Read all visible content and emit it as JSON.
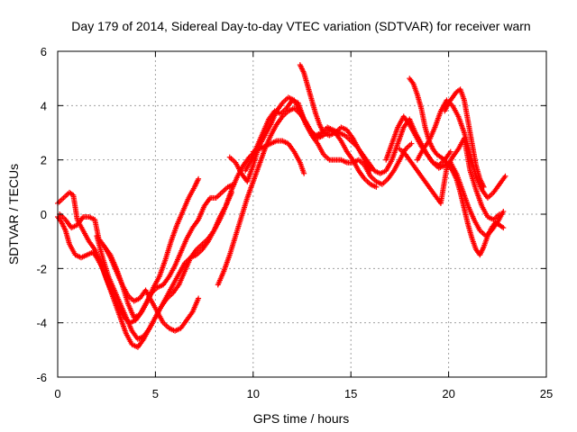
{
  "chart_data": {
    "type": "scatter",
    "title": "Day 179 of 2014, Sidereal Day-to-day VTEC variation (SDTVAR) for receiver warn",
    "xlabel": "GPS time / hours",
    "ylabel": "SDTVAR / TECUs",
    "xlim": [
      0,
      25
    ],
    "ylim": [
      -6,
      6
    ],
    "xticks": [
      0,
      5,
      10,
      15,
      20,
      25
    ],
    "yticks": [
      -6,
      -4,
      -2,
      0,
      2,
      4,
      6
    ],
    "grid": true,
    "marker": "+",
    "color": "#ff0000",
    "series": [
      {
        "x": [
          0.0,
          0.3,
          0.6,
          0.8,
          1.0,
          1.3,
          1.6,
          1.9,
          2.2,
          2.5,
          2.8,
          3.1,
          3.4,
          3.7,
          4.0,
          4.3,
          4.6,
          4.9,
          5.2,
          5.5,
          5.8,
          6.1,
          6.4,
          6.7,
          7.0,
          7.2
        ],
        "y": [
          0.4,
          0.6,
          0.8,
          0.7,
          -0.2,
          -0.6,
          -1.0,
          -1.3,
          -1.8,
          -2.4,
          -2.9,
          -3.4,
          -3.8,
          -4.0,
          -3.9,
          -3.6,
          -3.2,
          -2.7,
          -2.3,
          -1.7,
          -1.0,
          -0.4,
          0.1,
          0.6,
          1.0,
          1.3
        ]
      },
      {
        "x": [
          0.0,
          0.2,
          0.4,
          0.6,
          0.9,
          1.2,
          1.5,
          1.8,
          2.0,
          2.3,
          2.6,
          2.9,
          3.2,
          3.5,
          3.8,
          4.1,
          4.4,
          4.7,
          5.0,
          5.3,
          5.6,
          5.9,
          6.2,
          6.5,
          6.8,
          7.1,
          7.4,
          7.7,
          8.0,
          8.3,
          8.6,
          8.9
        ],
        "y": [
          -0.1,
          -0.3,
          -0.6,
          -1.1,
          -1.5,
          -1.6,
          -1.5,
          -1.4,
          -1.6,
          -2.0,
          -2.6,
          -3.2,
          -3.8,
          -4.4,
          -4.8,
          -4.9,
          -4.6,
          -4.2,
          -3.8,
          -3.4,
          -3.0,
          -2.6,
          -2.2,
          -1.8,
          -1.6,
          -1.5,
          -1.3,
          -1.0,
          -0.6,
          -0.1,
          0.3,
          0.8
        ]
      },
      {
        "x": [
          0.1,
          0.4,
          0.7,
          1.0,
          1.3,
          1.6,
          1.9,
          2.1,
          2.4,
          2.7,
          3.0,
          3.3,
          3.6,
          3.9,
          4.2,
          4.5,
          4.8,
          5.1,
          5.4,
          5.7,
          6.0,
          6.3,
          6.6,
          6.9,
          7.2,
          7.5,
          7.8,
          8.1,
          8.4,
          8.7,
          9.0
        ],
        "y": [
          0.0,
          -0.2,
          -0.5,
          -0.4,
          -0.1,
          -0.1,
          -0.2,
          -0.9,
          -1.2,
          -1.5,
          -2.0,
          -2.6,
          -3.3,
          -3.8,
          -3.7,
          -3.3,
          -2.9,
          -2.7,
          -2.6,
          -2.3,
          -1.9,
          -1.4,
          -0.9,
          -0.5,
          -0.2,
          0.3,
          0.6,
          0.6,
          0.8,
          1.0,
          1.1
        ]
      },
      {
        "x": [
          2.0,
          2.3,
          2.6,
          2.9,
          3.2,
          3.5,
          3.8,
          4.1,
          4.4,
          4.7,
          5.0,
          5.3,
          5.6,
          5.9,
          6.2,
          6.5,
          6.8,
          7.1,
          7.4,
          7.7,
          8.0,
          8.3,
          8.6,
          8.9,
          9.2,
          9.5,
          9.8,
          10.1
        ],
        "y": [
          -0.8,
          -1.6,
          -2.3,
          -2.8,
          -3.3,
          -3.8,
          -4.3,
          -4.6,
          -4.5,
          -4.2,
          -3.8,
          -3.4,
          -3.1,
          -2.9,
          -2.6,
          -2.1,
          -1.6,
          -1.3,
          -1.1,
          -0.9,
          -0.6,
          -0.2,
          0.3,
          0.9,
          1.4,
          1.8,
          2.1,
          2.3
        ]
      },
      {
        "x": [
          2.4,
          2.7,
          3.0,
          3.3,
          3.6,
          3.9,
          4.2,
          4.5,
          4.8,
          5.1,
          5.4,
          5.7,
          6.0,
          6.3,
          6.6,
          6.9,
          7.2
        ],
        "y": [
          -1.2,
          -1.6,
          -2.1,
          -2.6,
          -3.0,
          -3.2,
          -3.1,
          -2.8,
          -3.2,
          -3.6,
          -4.0,
          -4.2,
          -4.3,
          -4.2,
          -3.9,
          -3.6,
          -3.1
        ]
      },
      {
        "x": [
          8.2,
          8.5,
          8.8,
          9.1,
          9.4,
          9.7,
          10.0,
          10.3,
          10.6,
          10.9,
          11.2,
          11.5,
          11.8,
          12.1,
          12.4,
          12.7,
          13.0,
          13.3,
          13.6,
          13.9,
          14.2,
          14.5,
          14.8,
          15.1,
          15.4,
          15.7,
          16.0,
          16.3
        ],
        "y": [
          -2.6,
          -2.1,
          -1.5,
          -0.8,
          -0.1,
          0.6,
          1.2,
          1.8,
          2.4,
          2.9,
          3.3,
          3.6,
          3.8,
          3.9,
          3.7,
          3.4,
          3.0,
          2.8,
          2.9,
          3.1,
          3.0,
          2.7,
          2.3,
          2.0,
          1.6,
          1.3,
          1.1,
          1.0
        ]
      },
      {
        "x": [
          8.8,
          9.1,
          9.4,
          9.7,
          10.0,
          10.3,
          10.6,
          10.9,
          11.2,
          11.5,
          11.8,
          12.1,
          12.4,
          12.7,
          13.0,
          13.3,
          13.6,
          13.9,
          14.2,
          14.5,
          14.8,
          15.1,
          15.4,
          15.7,
          16.0,
          16.3,
          16.6,
          16.9,
          17.2,
          17.5,
          17.8,
          18.1
        ],
        "y": [
          2.1,
          1.9,
          1.5,
          1.2,
          1.8,
          2.5,
          2.9,
          3.3,
          3.8,
          4.1,
          4.3,
          4.2,
          3.8,
          3.3,
          2.9,
          2.6,
          2.2,
          2.0,
          2.0,
          2.0,
          1.9,
          1.9,
          2.0,
          1.8,
          1.4,
          1.2,
          1.1,
          1.3,
          1.6,
          2.0,
          2.4,
          2.6
        ]
      },
      {
        "x": [
          9.6,
          9.9,
          10.2,
          10.5,
          10.8,
          11.1,
          11.4,
          11.7,
          12.0,
          12.3,
          12.6,
          12.9,
          13.2,
          13.5,
          13.8,
          14.1,
          14.4,
          14.7,
          15.0,
          15.3,
          15.6,
          15.9,
          16.2,
          16.5,
          16.8,
          17.1,
          17.4,
          17.7,
          18.0,
          18.3,
          18.6,
          18.9,
          19.2,
          19.5,
          19.8,
          20.1
        ],
        "y": [
          1.6,
          2.0,
          2.5,
          3.0,
          3.5,
          3.8,
          3.7,
          3.9,
          4.2,
          4.1,
          3.5,
          3.1,
          2.9,
          3.0,
          3.2,
          3.1,
          3.0,
          2.9,
          2.7,
          2.5,
          2.2,
          1.9,
          1.6,
          1.5,
          1.6,
          2.0,
          2.6,
          3.2,
          3.5,
          3.0,
          2.6,
          2.2,
          1.9,
          1.8,
          2.0,
          2.3
        ]
      },
      {
        "x": [
          10.0,
          10.3,
          10.6,
          10.9,
          11.2,
          11.5,
          11.8,
          12.1,
          12.4,
          12.6
        ],
        "y": [
          2.3,
          2.4,
          2.5,
          2.6,
          2.7,
          2.7,
          2.6,
          2.3,
          1.9,
          1.5
        ]
      },
      {
        "x": [
          12.4,
          12.6,
          12.8,
          13.0,
          13.2,
          13.4,
          13.6,
          13.9,
          14.2,
          14.5,
          14.8,
          15.1,
          15.4,
          15.7,
          16.0
        ],
        "y": [
          5.5,
          5.2,
          4.7,
          4.2,
          3.7,
          3.3,
          3.0,
          2.9,
          3.0,
          3.2,
          3.1,
          2.8,
          2.4,
          2.0,
          1.6
        ]
      },
      {
        "x": [
          16.8,
          17.1,
          17.4,
          17.7,
          18.0,
          18.3,
          18.6,
          18.9,
          19.2,
          19.5,
          19.8,
          20.1,
          20.4,
          20.7,
          21.0,
          21.3,
          21.6,
          21.9,
          22.2,
          22.5,
          22.8
        ],
        "y": [
          2.0,
          2.6,
          3.2,
          3.6,
          3.3,
          2.9,
          2.5,
          2.2,
          1.9,
          1.7,
          1.8,
          1.9,
          1.5,
          0.9,
          0.3,
          -0.2,
          -0.6,
          -0.8,
          -0.6,
          -0.3,
          0.1
        ]
      },
      {
        "x": [
          18.0,
          18.2,
          18.4,
          18.6,
          18.8,
          19.0,
          19.2,
          19.4,
          19.6,
          19.8,
          20.0,
          20.2,
          20.4,
          20.6,
          20.8,
          21.0,
          21.2,
          21.4,
          21.6,
          21.8,
          22.0,
          22.2,
          22.4,
          22.6,
          22.8
        ],
        "y": [
          5.0,
          4.8,
          4.4,
          3.9,
          3.2,
          2.7,
          2.4,
          2.2,
          2.1,
          2.0,
          1.8,
          1.6,
          1.3,
          0.8,
          0.2,
          -0.4,
          -0.9,
          -1.3,
          -1.5,
          -1.2,
          -0.8,
          -0.5,
          -0.3,
          -0.4,
          -0.5
        ]
      },
      {
        "x": [
          18.4,
          18.7,
          19.0,
          19.3,
          19.6,
          19.9,
          20.2,
          20.5,
          20.8,
          21.1,
          21.4,
          21.7,
          22.0,
          22.3,
          22.6,
          22.9
        ],
        "y": [
          2.0,
          2.4,
          2.7,
          3.2,
          3.8,
          4.2,
          4.0,
          3.6,
          3.0,
          2.2,
          1.4,
          0.9,
          0.6,
          0.8,
          1.1,
          1.4
        ]
      },
      {
        "x": [
          17.5,
          17.8,
          18.1,
          18.4,
          18.7,
          19.0,
          19.3,
          19.6,
          19.9,
          20.2,
          20.5,
          20.8,
          21.1,
          21.4,
          21.7,
          22.0,
          22.3,
          22.6
        ],
        "y": [
          2.4,
          2.2,
          1.9,
          1.6,
          1.3,
          1.0,
          0.7,
          0.4,
          1.7,
          2.1,
          2.4,
          2.8,
          1.6,
          0.9,
          0.3,
          -0.1,
          -0.2,
          0.0
        ]
      },
      {
        "x": [
          19.8,
          20.0,
          20.2,
          20.4,
          20.6,
          20.8,
          21.0,
          21.2,
          21.4,
          21.6,
          21.8
        ],
        "y": [
          3.8,
          4.1,
          4.3,
          4.5,
          4.6,
          4.2,
          3.4,
          2.6,
          1.8,
          1.3,
          1.0
        ]
      }
    ]
  }
}
